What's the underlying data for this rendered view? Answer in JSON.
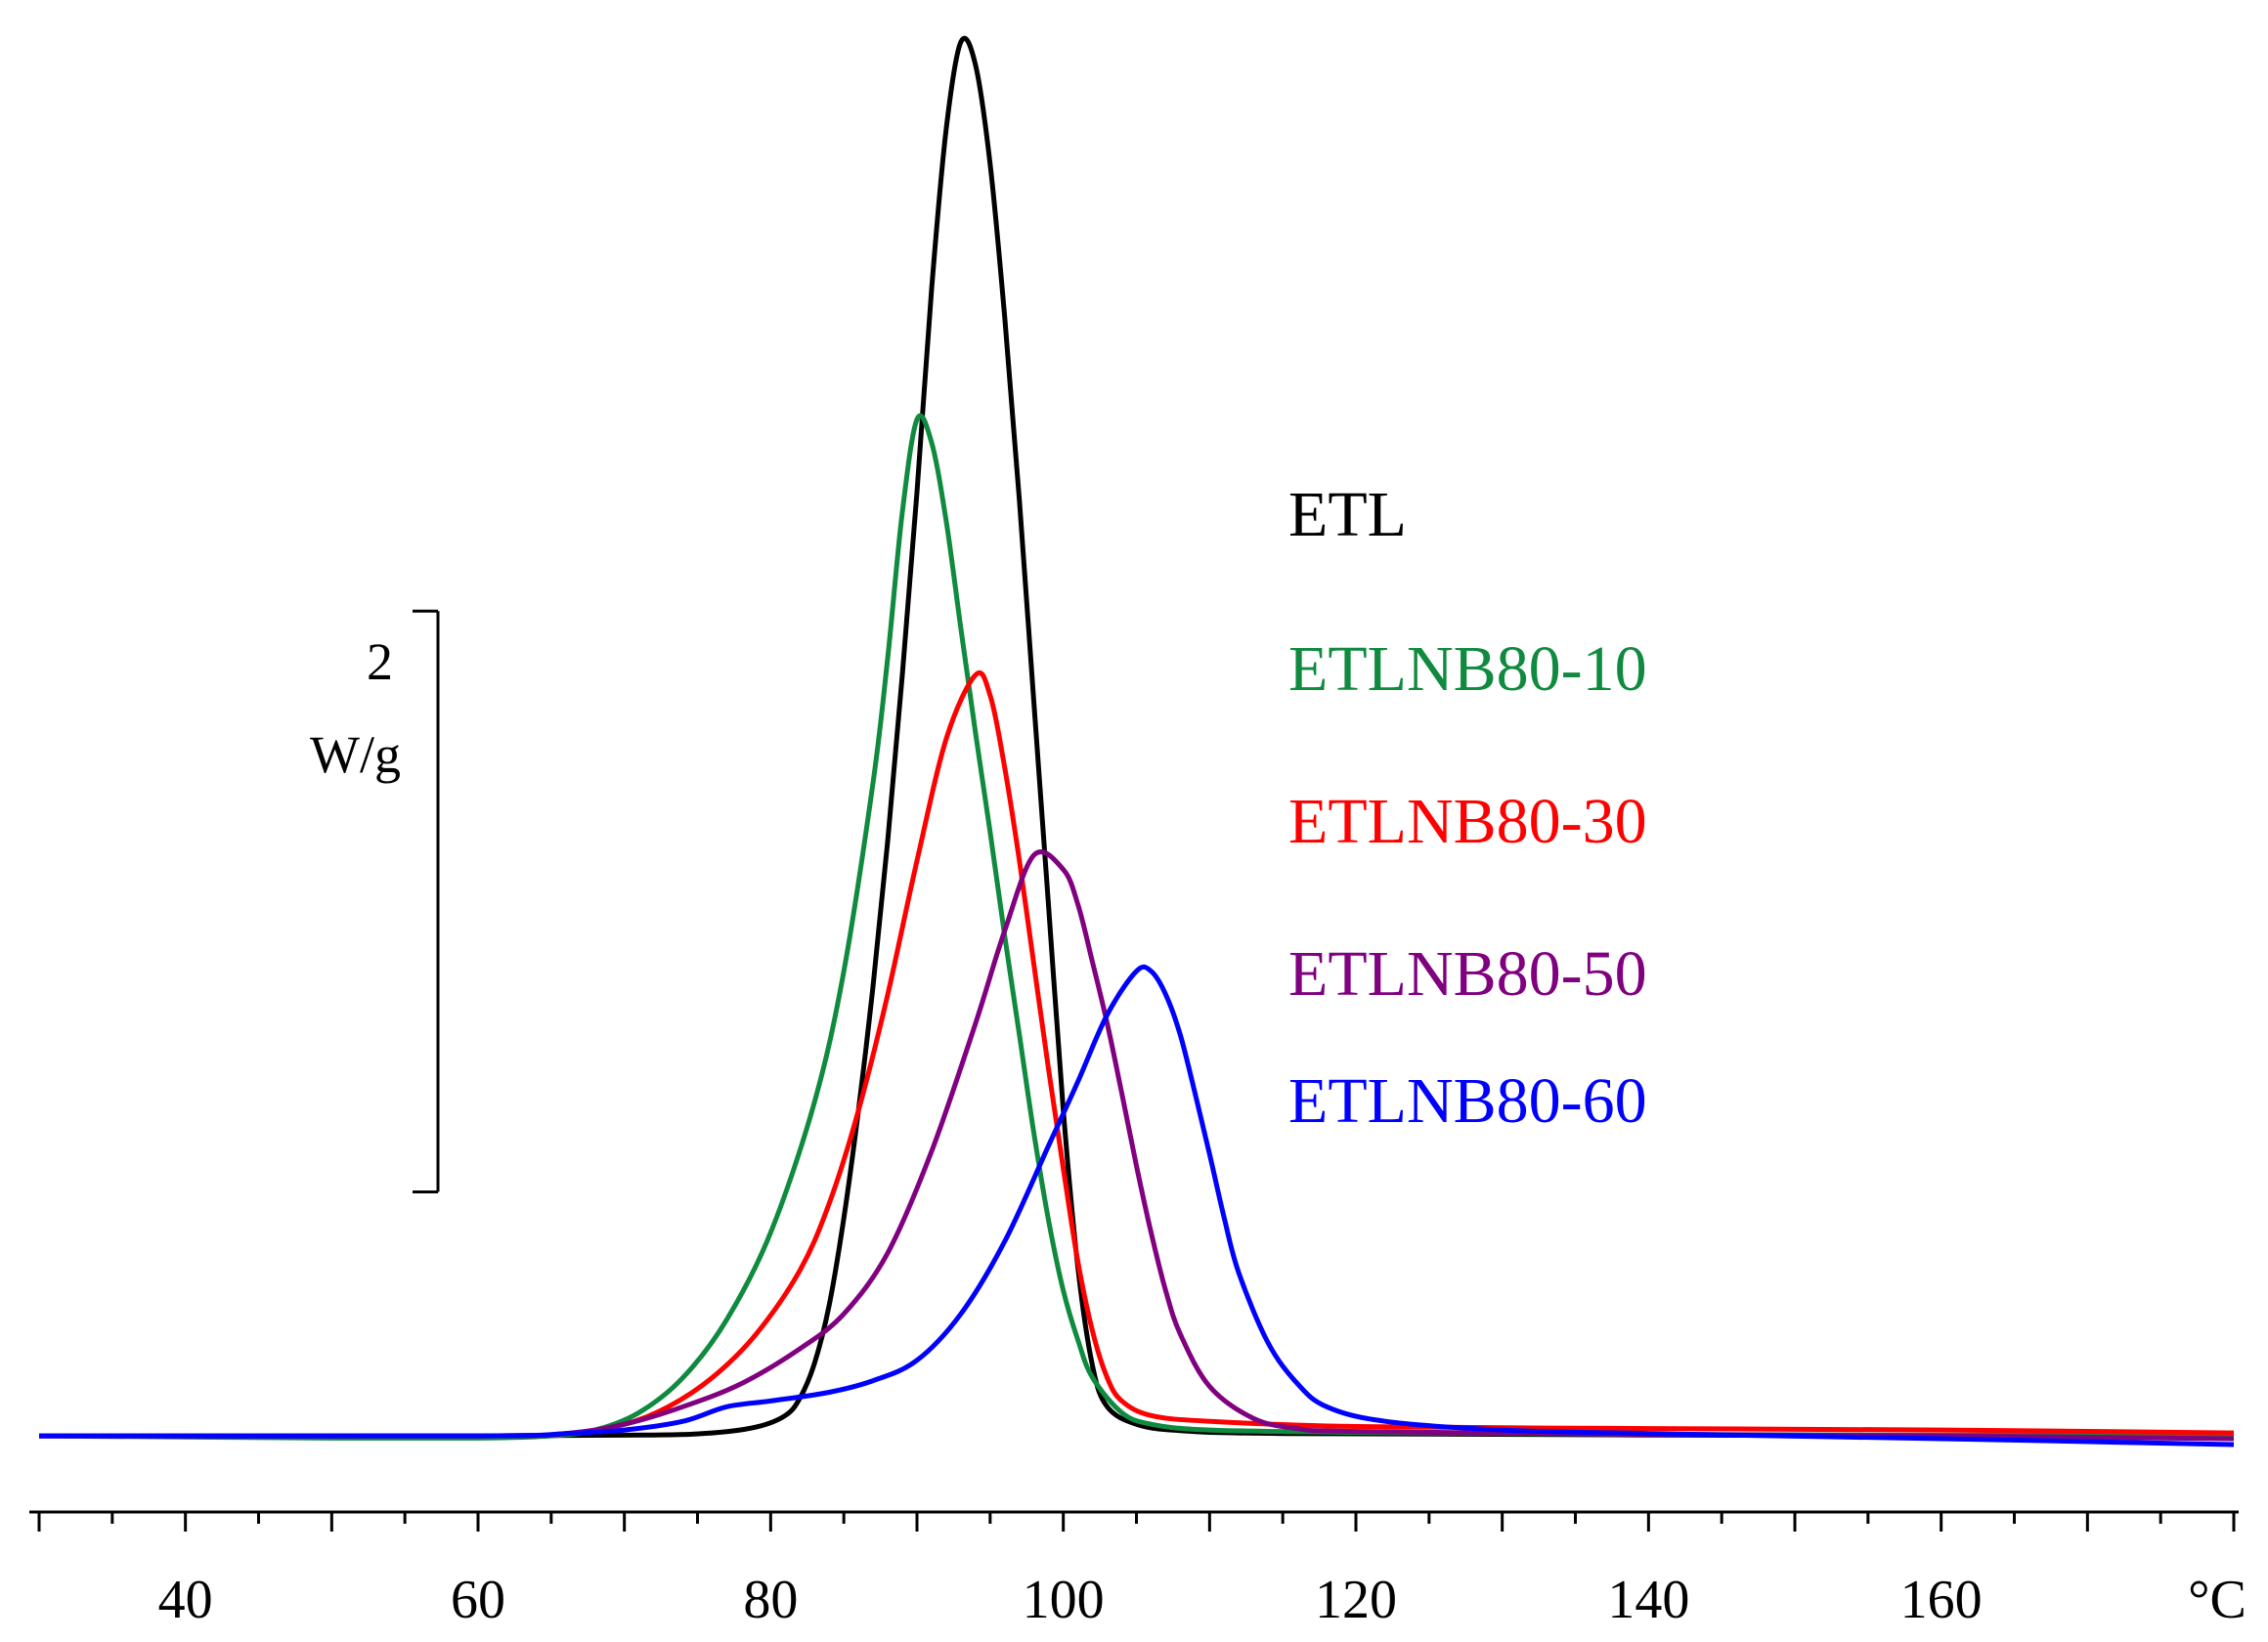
{
  "chart_data": {
    "type": "line",
    "title": "",
    "xlabel": "°C",
    "ylabel": "",
    "xlim": [
      30,
      180
    ],
    "ylim": [
      -0.02,
      4.85
    ],
    "grid": false,
    "x_ticks": [
      "40",
      "60",
      "80",
      "100",
      "120",
      "140",
      "160"
    ],
    "x_unit_label": "°C",
    "scale_bar": {
      "value": "2",
      "unit": "W/g",
      "magnitude": 2.0,
      "bottom_value": 0.84
    },
    "legend_position": "right",
    "series": [
      {
        "name": "ETL",
        "color": "#000000",
        "baseline": 0.0,
        "points": [
          [
            30,
            0
          ],
          [
            60,
            0
          ],
          [
            72,
            0.003
          ],
          [
            76,
            0.01
          ],
          [
            79,
            0.03
          ],
          [
            81,
            0.07
          ],
          [
            82,
            0.13
          ],
          [
            83,
            0.25
          ],
          [
            84,
            0.45
          ],
          [
            85,
            0.75
          ],
          [
            86,
            1.12
          ],
          [
            87,
            1.55
          ],
          [
            88,
            2.05
          ],
          [
            89,
            2.62
          ],
          [
            90,
            3.25
          ],
          [
            91,
            3.95
          ],
          [
            92,
            4.5
          ],
          [
            93,
            4.8
          ],
          [
            94,
            4.72
          ],
          [
            95,
            4.38
          ],
          [
            96,
            3.85
          ],
          [
            97,
            3.22
          ],
          [
            98,
            2.52
          ],
          [
            99,
            1.82
          ],
          [
            100,
            1.12
          ],
          [
            101,
            0.58
          ],
          [
            102,
            0.24
          ],
          [
            103,
            0.1
          ],
          [
            105,
            0.04
          ],
          [
            108,
            0.018
          ],
          [
            115,
            0.008
          ],
          [
            140,
            0.003
          ],
          [
            180,
            -0.002
          ]
        ]
      },
      {
        "name": "ETLNB80-10",
        "color": "#0f8a3e",
        "baseline": 0.0,
        "points": [
          [
            30,
            0
          ],
          [
            50,
            -0.008
          ],
          [
            60,
            -0.008
          ],
          [
            65,
            0
          ],
          [
            68,
            0.02
          ],
          [
            71,
            0.08
          ],
          [
            74,
            0.2
          ],
          [
            77,
            0.4
          ],
          [
            80,
            0.7
          ],
          [
            83,
            1.15
          ],
          [
            85,
            1.6
          ],
          [
            87,
            2.25
          ],
          [
            88,
            2.68
          ],
          [
            89,
            3.18
          ],
          [
            90,
            3.5
          ],
          [
            91,
            3.42
          ],
          [
            92,
            3.15
          ],
          [
            93,
            2.78
          ],
          [
            94,
            2.42
          ],
          [
            95,
            2.08
          ],
          [
            96,
            1.72
          ],
          [
            97,
            1.38
          ],
          [
            98,
            1.04
          ],
          [
            99,
            0.74
          ],
          [
            100,
            0.5
          ],
          [
            101,
            0.33
          ],
          [
            102,
            0.2
          ],
          [
            104,
            0.08
          ],
          [
            106,
            0.04
          ],
          [
            110,
            0.02
          ],
          [
            120,
            0.012
          ],
          [
            140,
            0.005
          ],
          [
            180,
            0
          ]
        ]
      },
      {
        "name": "ETLNB80-30",
        "color": "#ff0000",
        "baseline": 0.0,
        "points": [
          [
            30,
            0
          ],
          [
            60,
            0
          ],
          [
            66,
            0.008
          ],
          [
            70,
            0.04
          ],
          [
            73,
            0.1
          ],
          [
            76,
            0.2
          ],
          [
            79,
            0.35
          ],
          [
            82,
            0.57
          ],
          [
            84,
            0.8
          ],
          [
            86,
            1.12
          ],
          [
            88,
            1.52
          ],
          [
            90,
            1.98
          ],
          [
            92,
            2.4
          ],
          [
            94,
            2.62
          ],
          [
            95,
            2.55
          ],
          [
            96,
            2.3
          ],
          [
            97,
            1.98
          ],
          [
            98,
            1.62
          ],
          [
            99,
            1.26
          ],
          [
            100,
            0.92
          ],
          [
            101,
            0.6
          ],
          [
            102,
            0.36
          ],
          [
            103,
            0.2
          ],
          [
            104,
            0.12
          ],
          [
            106,
            0.07
          ],
          [
            110,
            0.05
          ],
          [
            120,
            0.032
          ],
          [
            140,
            0.025
          ],
          [
            160,
            0.02
          ],
          [
            180,
            0.01
          ]
        ]
      },
      {
        "name": "ETLNB80-50",
        "color": "#800080",
        "baseline": 0.0,
        "points": [
          [
            30,
            0
          ],
          [
            60,
            0
          ],
          [
            66,
            0.008
          ],
          [
            70,
            0.04
          ],
          [
            74,
            0.1
          ],
          [
            78,
            0.18
          ],
          [
            82,
            0.3
          ],
          [
            85,
            0.42
          ],
          [
            88,
            0.63
          ],
          [
            91,
            0.98
          ],
          [
            94,
            1.42
          ],
          [
            96,
            1.74
          ],
          [
            98,
            2.0
          ],
          [
            100,
            1.95
          ],
          [
            101,
            1.83
          ],
          [
            102,
            1.63
          ],
          [
            103,
            1.42
          ],
          [
            104,
            1.18
          ],
          [
            105,
            0.93
          ],
          [
            106,
            0.7
          ],
          [
            107,
            0.5
          ],
          [
            108,
            0.35
          ],
          [
            110,
            0.17
          ],
          [
            113,
            0.06
          ],
          [
            116,
            0.025
          ],
          [
            120,
            0.015
          ],
          [
            140,
            0.005
          ],
          [
            160,
            0
          ],
          [
            180,
            -0.01
          ]
        ]
      },
      {
        "name": "ETLNB80-60",
        "color": "#0000ff",
        "baseline": 0.0,
        "points": [
          [
            30,
            0
          ],
          [
            60,
            0
          ],
          [
            66,
            0.008
          ],
          [
            70,
            0.02
          ],
          [
            74,
            0.05
          ],
          [
            77,
            0.1
          ],
          [
            80,
            0.12
          ],
          [
            84,
            0.15
          ],
          [
            87,
            0.19
          ],
          [
            90,
            0.26
          ],
          [
            93,
            0.42
          ],
          [
            96,
            0.67
          ],
          [
            99,
            1.0
          ],
          [
            101,
            1.22
          ],
          [
            103,
            1.45
          ],
          [
            105,
            1.6
          ],
          [
            106,
            1.6
          ],
          [
            107,
            1.52
          ],
          [
            108,
            1.38
          ],
          [
            109,
            1.18
          ],
          [
            110,
            0.97
          ],
          [
            111,
            0.75
          ],
          [
            112,
            0.56
          ],
          [
            114,
            0.32
          ],
          [
            116,
            0.18
          ],
          [
            118,
            0.1
          ],
          [
            122,
            0.05
          ],
          [
            130,
            0.02
          ],
          [
            140,
            0.008
          ],
          [
            160,
            -0.01
          ],
          [
            180,
            -0.03
          ]
        ]
      }
    ]
  }
}
